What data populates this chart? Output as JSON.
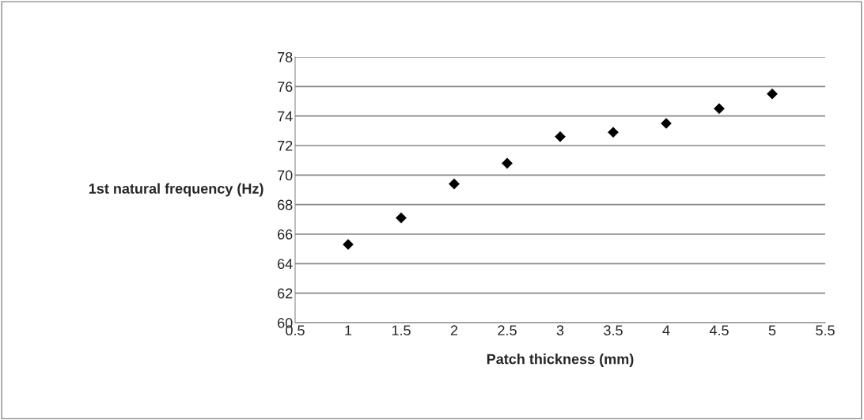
{
  "chart_data": {
    "type": "scatter",
    "xlabel": "Patch thickness (mm)",
    "ylabel": "1st natural frequency (Hz)",
    "x": [
      1,
      1.5,
      2,
      2.5,
      3,
      3.5,
      4,
      4.5,
      5
    ],
    "series": [
      {
        "color": "#000000",
        "values": [
          65.3,
          67.1,
          69.4,
          70.8,
          72.6,
          72.9,
          73.5,
          74.5,
          75.5
        ]
      }
    ],
    "xlim": [
      0.5,
      5.5
    ],
    "xticks": [
      0.5,
      1,
      1.5,
      2,
      2.5,
      3,
      3.5,
      4,
      4.5,
      5,
      5.5
    ],
    "ylim": [
      60,
      78
    ],
    "yticks": [
      60,
      62,
      64,
      66,
      68,
      70,
      72,
      74,
      76,
      78
    ],
    "grid": "y",
    "marker": "diamond",
    "legend": false
  }
}
